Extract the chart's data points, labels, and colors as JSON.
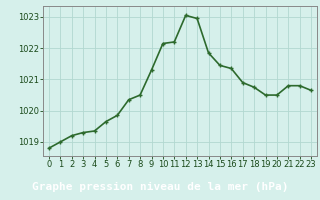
{
  "x": [
    0,
    1,
    2,
    3,
    4,
    5,
    6,
    7,
    8,
    9,
    10,
    11,
    12,
    13,
    14,
    15,
    16,
    17,
    18,
    19,
    20,
    21,
    22,
    23
  ],
  "y": [
    1018.8,
    1019.0,
    1019.2,
    1019.3,
    1019.35,
    1019.65,
    1019.85,
    1020.35,
    1020.5,
    1021.3,
    1022.15,
    1022.2,
    1023.05,
    1022.95,
    1021.85,
    1021.45,
    1021.35,
    1020.9,
    1020.75,
    1020.5,
    1020.5,
    1020.8,
    1020.8,
    1020.65
  ],
  "line_color": "#2d6a2d",
  "marker_color": "#2d6a2d",
  "bg_color": "#d6f0eb",
  "grid_color": "#b2d8d0",
  "border_color": "#888888",
  "tick_label_color": "#1a4a1a",
  "xlabel": "Graphe pression niveau de la mer (hPa)",
  "xlabel_fontsize": 8,
  "xlabel_color": "#1a4a1a",
  "xlabel_bg": "#2a6a2a",
  "ylabel_ticks": [
    1019,
    1020,
    1021,
    1022,
    1023
  ],
  "xtick_labels": [
    "0",
    "1",
    "2",
    "3",
    "4",
    "5",
    "6",
    "7",
    "8",
    "9",
    "10",
    "11",
    "12",
    "13",
    "14",
    "15",
    "16",
    "17",
    "18",
    "19",
    "20",
    "21",
    "22",
    "23"
  ],
  "ylim": [
    1018.55,
    1023.35
  ],
  "xlim": [
    -0.5,
    23.5
  ],
  "tick_fontsize": 6.0,
  "line_width": 1.2,
  "marker_size": 3.0,
  "marker_style": "+"
}
